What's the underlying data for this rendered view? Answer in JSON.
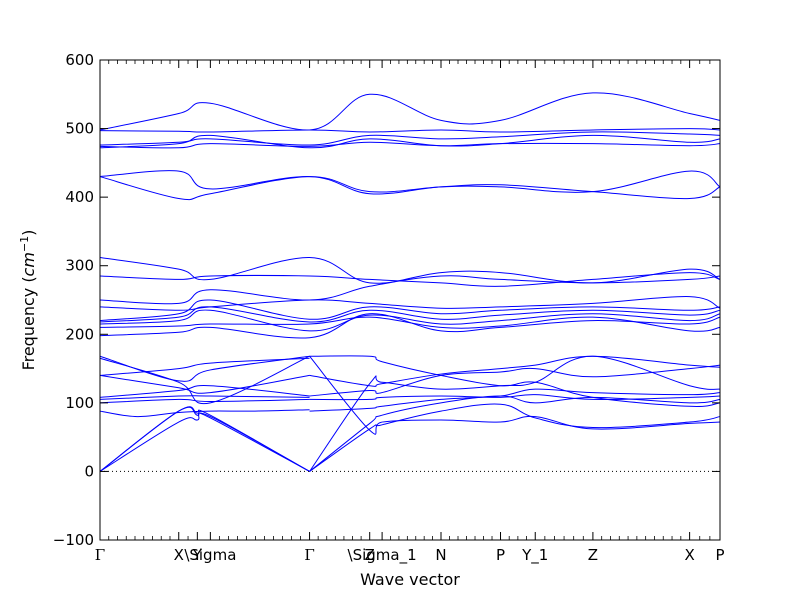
{
  "chart_data": {
    "type": "line",
    "title": "",
    "xlabel": "Wave vector",
    "ylabel": {
      "main": "Frequency",
      "unit": "cm",
      "exp": "−1"
    },
    "ylim": [
      -100,
      600
    ],
    "yticks": [
      -100,
      0,
      100,
      200,
      300,
      400,
      500,
      600
    ],
    "xlim": [
      0,
      1
    ],
    "xticks": [
      {
        "x": 0.0,
        "label": "Γ"
      },
      {
        "x": 0.127,
        "label": "X"
      },
      {
        "x": 0.157,
        "label": "Y"
      },
      {
        "x": 0.178,
        "label": "\\Sigma"
      },
      {
        "x": 0.338,
        "label": "Γ"
      },
      {
        "x": 0.435,
        "label": "Z"
      },
      {
        "x": 0.455,
        "label": "\\Sigma_1"
      },
      {
        "x": 0.55,
        "label": "N"
      },
      {
        "x": 0.646,
        "label": "P"
      },
      {
        "x": 0.702,
        "label": "Y_1"
      },
      {
        "x": 0.795,
        "label": "Z"
      },
      {
        "x": 0.951,
        "label": "X"
      },
      {
        "x": 1.0,
        "label": "P"
      }
    ],
    "zero_line": 0,
    "line_color": "#0000ff",
    "series": [
      {
        "x": [
          0,
          0.127,
          0.157,
          0.178,
          0.338
        ],
        "y": [
          0,
          88,
          82,
          78,
          0
        ]
      },
      {
        "x": [
          0,
          0.127,
          0.157,
          0.178,
          0.338
        ],
        "y": [
          0,
          88,
          85,
          82,
          0
        ]
      },
      {
        "x": [
          0,
          0.127,
          0.157,
          0.178,
          0.338
        ],
        "y": [
          0,
          72,
          75,
          80,
          0
        ]
      },
      {
        "x": [
          0,
          0.06,
          0.127,
          0.178,
          0.25,
          0.338
        ],
        "y": [
          88,
          80,
          86,
          88,
          88,
          90
        ]
      },
      {
        "x": [
          0,
          0.127,
          0.178,
          0.338
        ],
        "y": [
          100,
          105,
          102,
          105
        ]
      },
      {
        "x": [
          0,
          0.127,
          0.178,
          0.338
        ],
        "y": [
          105,
          110,
          110,
          108
        ]
      },
      {
        "x": [
          0,
          0.127,
          0.178,
          0.338
        ],
        "y": [
          108,
          118,
          125,
          110
        ]
      },
      {
        "x": [
          0,
          0.127,
          0.178,
          0.338
        ],
        "y": [
          140,
          122,
          115,
          140
        ]
      },
      {
        "x": [
          0,
          0.127,
          0.178,
          0.338
        ],
        "y": [
          140,
          150,
          158,
          165
        ]
      },
      {
        "x": [
          0,
          0.127,
          0.178,
          0.338
        ],
        "y": [
          165,
          130,
          100,
          168
        ]
      },
      {
        "x": [
          0,
          0.127,
          0.178,
          0.338
        ],
        "y": [
          168,
          132,
          148,
          168
        ]
      },
      {
        "x": [
          0.338,
          0.435,
          0.455,
          0.55,
          0.646,
          0.702,
          0.795,
          0.951,
          1.0
        ],
        "y": [
          0,
          62,
          68,
          88,
          98,
          78,
          64,
          72,
          80
        ]
      },
      {
        "x": [
          0.338,
          0.435,
          0.455,
          0.55,
          0.646,
          0.702,
          0.795,
          0.951,
          1.0
        ],
        "y": [
          0,
          70,
          82,
          100,
          110,
          100,
          108,
          100,
          105
        ]
      },
      {
        "x": [
          0.338,
          0.435,
          0.455,
          0.55,
          0.646,
          0.702,
          0.795,
          0.951,
          1.0
        ],
        "y": [
          0,
          128,
          130,
          120,
          125,
          130,
          168,
          125,
          120
        ]
      },
      {
        "x": [
          0.338,
          0.435,
          0.455,
          0.55,
          0.646,
          0.702,
          0.795,
          0.951,
          1.0
        ],
        "y": [
          88,
          92,
          95,
          105,
          110,
          120,
          115,
          112,
          115
        ]
      },
      {
        "x": [
          0.338,
          0.435,
          0.455,
          0.55,
          0.646,
          0.702,
          0.795,
          0.951,
          1.0
        ],
        "y": [
          105,
          105,
          108,
          110,
          108,
          112,
          105,
          108,
          110
        ]
      },
      {
        "x": [
          0.338,
          0.435,
          0.455,
          0.55,
          0.646,
          0.702,
          0.795,
          0.951,
          1.0
        ],
        "y": [
          110,
          118,
          115,
          140,
          145,
          150,
          138,
          150,
          155
        ]
      },
      {
        "x": [
          0.338,
          0.435,
          0.455,
          0.55,
          0.646,
          0.702,
          0.795,
          0.951,
          1.0
        ],
        "y": [
          140,
          125,
          128,
          142,
          150,
          155,
          168,
          155,
          152
        ]
      },
      {
        "x": [
          0.338,
          0.435,
          0.455,
          0.55,
          0.646,
          0.702,
          0.795,
          0.951,
          1.0
        ],
        "y": [
          168,
          168,
          160,
          140,
          125,
          130,
          108,
          95,
          100
        ]
      },
      {
        "x": [
          0.338,
          0.435,
          0.455,
          0.55,
          0.646,
          0.702,
          0.795,
          0.951,
          1.0
        ],
        "y": [
          168,
          60,
          72,
          75,
          72,
          80,
          62,
          70,
          72
        ]
      },
      {
        "x": [
          0,
          0.127,
          0.178,
          0.338,
          0.435,
          0.55,
          0.646,
          0.795,
          0.951,
          1.0
        ],
        "y": [
          198,
          203,
          210,
          195,
          230,
          205,
          210,
          220,
          215,
          225
        ]
      },
      {
        "x": [
          0,
          0.127,
          0.178,
          0.338,
          0.435,
          0.55,
          0.646,
          0.795,
          0.951,
          1.0
        ],
        "y": [
          210,
          212,
          215,
          215,
          225,
          210,
          212,
          225,
          205,
          210
        ]
      },
      {
        "x": [
          0,
          0.127,
          0.178,
          0.338,
          0.435,
          0.55,
          0.646,
          0.795,
          0.951,
          1.0
        ],
        "y": [
          215,
          220,
          235,
          205,
          228,
          215,
          220,
          230,
          220,
          230
        ]
      },
      {
        "x": [
          0,
          0.127,
          0.178,
          0.338,
          0.435,
          0.55,
          0.646,
          0.795,
          0.951,
          1.0
        ],
        "y": [
          218,
          225,
          240,
          218,
          235,
          222,
          228,
          235,
          228,
          235
        ]
      },
      {
        "x": [
          0,
          0.127,
          0.178,
          0.338,
          0.435,
          0.55,
          0.646,
          0.795,
          0.951,
          1.0
        ],
        "y": [
          220,
          230,
          250,
          222,
          240,
          230,
          235,
          240,
          235,
          240
        ]
      },
      {
        "x": [
          0,
          0.127,
          0.178,
          0.338,
          0.435,
          0.55,
          0.646,
          0.795,
          0.951,
          1.0
        ],
        "y": [
          240,
          235,
          240,
          250,
          245,
          238,
          240,
          245,
          255,
          238
        ]
      },
      {
        "x": [
          0,
          0.127,
          0.178,
          0.338,
          0.435,
          0.55,
          0.646,
          0.795,
          0.951,
          1.0
        ],
        "y": [
          250,
          245,
          265,
          250,
          270,
          285,
          280,
          275,
          280,
          285
        ]
      },
      {
        "x": [
          0,
          0.127,
          0.178,
          0.338,
          0.435,
          0.55,
          0.646,
          0.795,
          0.951,
          1.0
        ],
        "y": [
          285,
          280,
          285,
          285,
          280,
          275,
          270,
          280,
          290,
          280
        ]
      },
      {
        "x": [
          0,
          0.127,
          0.178,
          0.338,
          0.435,
          0.55,
          0.646,
          0.795,
          0.951,
          1.0
        ],
        "y": [
          312,
          295,
          280,
          312,
          275,
          290,
          290,
          275,
          295,
          280
        ]
      },
      {
        "x": [
          0,
          0.127,
          0.178,
          0.338,
          0.435,
          0.55,
          0.646,
          0.795,
          0.951,
          1.0
        ],
        "y": [
          430,
          438,
          412,
          430,
          405,
          415,
          415,
          408,
          438,
          415
        ]
      },
      {
        "x": [
          0,
          0.127,
          0.178,
          0.338,
          0.435,
          0.55,
          0.646,
          0.795,
          0.951,
          1.0
        ],
        "y": [
          430,
          398,
          405,
          430,
          408,
          415,
          418,
          408,
          398,
          415
        ]
      },
      {
        "x": [
          0,
          0.127,
          0.178,
          0.338,
          0.435,
          0.55,
          0.646,
          0.795,
          0.951,
          1.0
        ],
        "y": [
          472,
          478,
          490,
          472,
          485,
          475,
          478,
          490,
          480,
          485
        ]
      },
      {
        "x": [
          0,
          0.127,
          0.178,
          0.338,
          0.435,
          0.55,
          0.646,
          0.795,
          0.951,
          1.0
        ],
        "y": [
          474,
          472,
          478,
          474,
          480,
          475,
          478,
          478,
          475,
          478
        ]
      },
      {
        "x": [
          0,
          0.127,
          0.178,
          0.338,
          0.435,
          0.55,
          0.646,
          0.795,
          0.951,
          1.0
        ],
        "y": [
          476,
          480,
          485,
          476,
          490,
          485,
          488,
          495,
          492,
          490
        ]
      },
      {
        "x": [
          0,
          0.127,
          0.178,
          0.338,
          0.435,
          0.55,
          0.646,
          0.795,
          0.951,
          1.0
        ],
        "y": [
          497,
          496,
          495,
          498,
          495,
          498,
          495,
          498,
          500,
          498
        ]
      },
      {
        "x": [
          0,
          0.127,
          0.178,
          0.338,
          0.435,
          0.55,
          0.646,
          0.795,
          0.951,
          1.0
        ],
        "y": [
          498,
          522,
          537,
          498,
          550,
          512,
          512,
          552,
          522,
          512
        ]
      }
    ]
  }
}
